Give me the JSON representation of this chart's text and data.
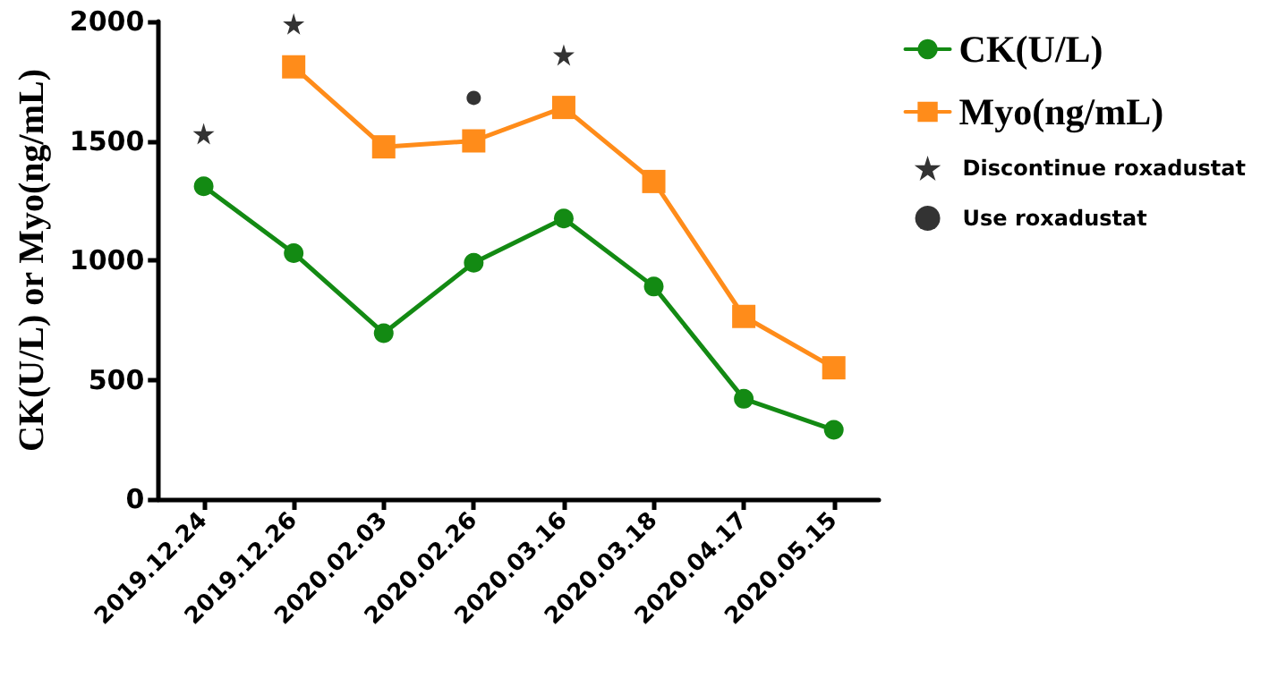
{
  "chart_data": {
    "type": "line",
    "ylabel": "CK(U/L) or Myo(ng/mL)",
    "categories": [
      "2019.12.24",
      "2019.12.26",
      "2020.02.03",
      "2020.02.26",
      "2020.03.16",
      "2020.03.18",
      "2020.04.17",
      "2020.05.15"
    ],
    "series": [
      {
        "name": "CK(U/L)",
        "color": "#138a13",
        "marker": "circle",
        "values": [
          1310,
          1030,
          695,
          990,
          1175,
          890,
          420,
          290
        ]
      },
      {
        "name": "Myo(ng/mL)",
        "color": "#ff8c1a",
        "marker": "square",
        "values": [
          null,
          1810,
          1475,
          1500,
          1640,
          1330,
          765,
          550
        ]
      },
      {
        "name": "Discontinue roxadustat",
        "type": "scatter",
        "color": "#000000",
        "marker": "star",
        "values": [
          1530,
          1990,
          null,
          null,
          1860,
          null,
          null,
          null
        ]
      },
      {
        "name": "Use roxadustat",
        "type": "scatter",
        "color": "#000000",
        "marker": "circle",
        "values": [
          null,
          null,
          null,
          1680,
          null,
          null,
          null,
          null
        ]
      }
    ],
    "ylim": [
      0,
      2000
    ],
    "yticks": [
      0,
      500,
      1000,
      1500,
      2000
    ],
    "grid": false,
    "legend": "top right",
    "line_style": "solid"
  }
}
